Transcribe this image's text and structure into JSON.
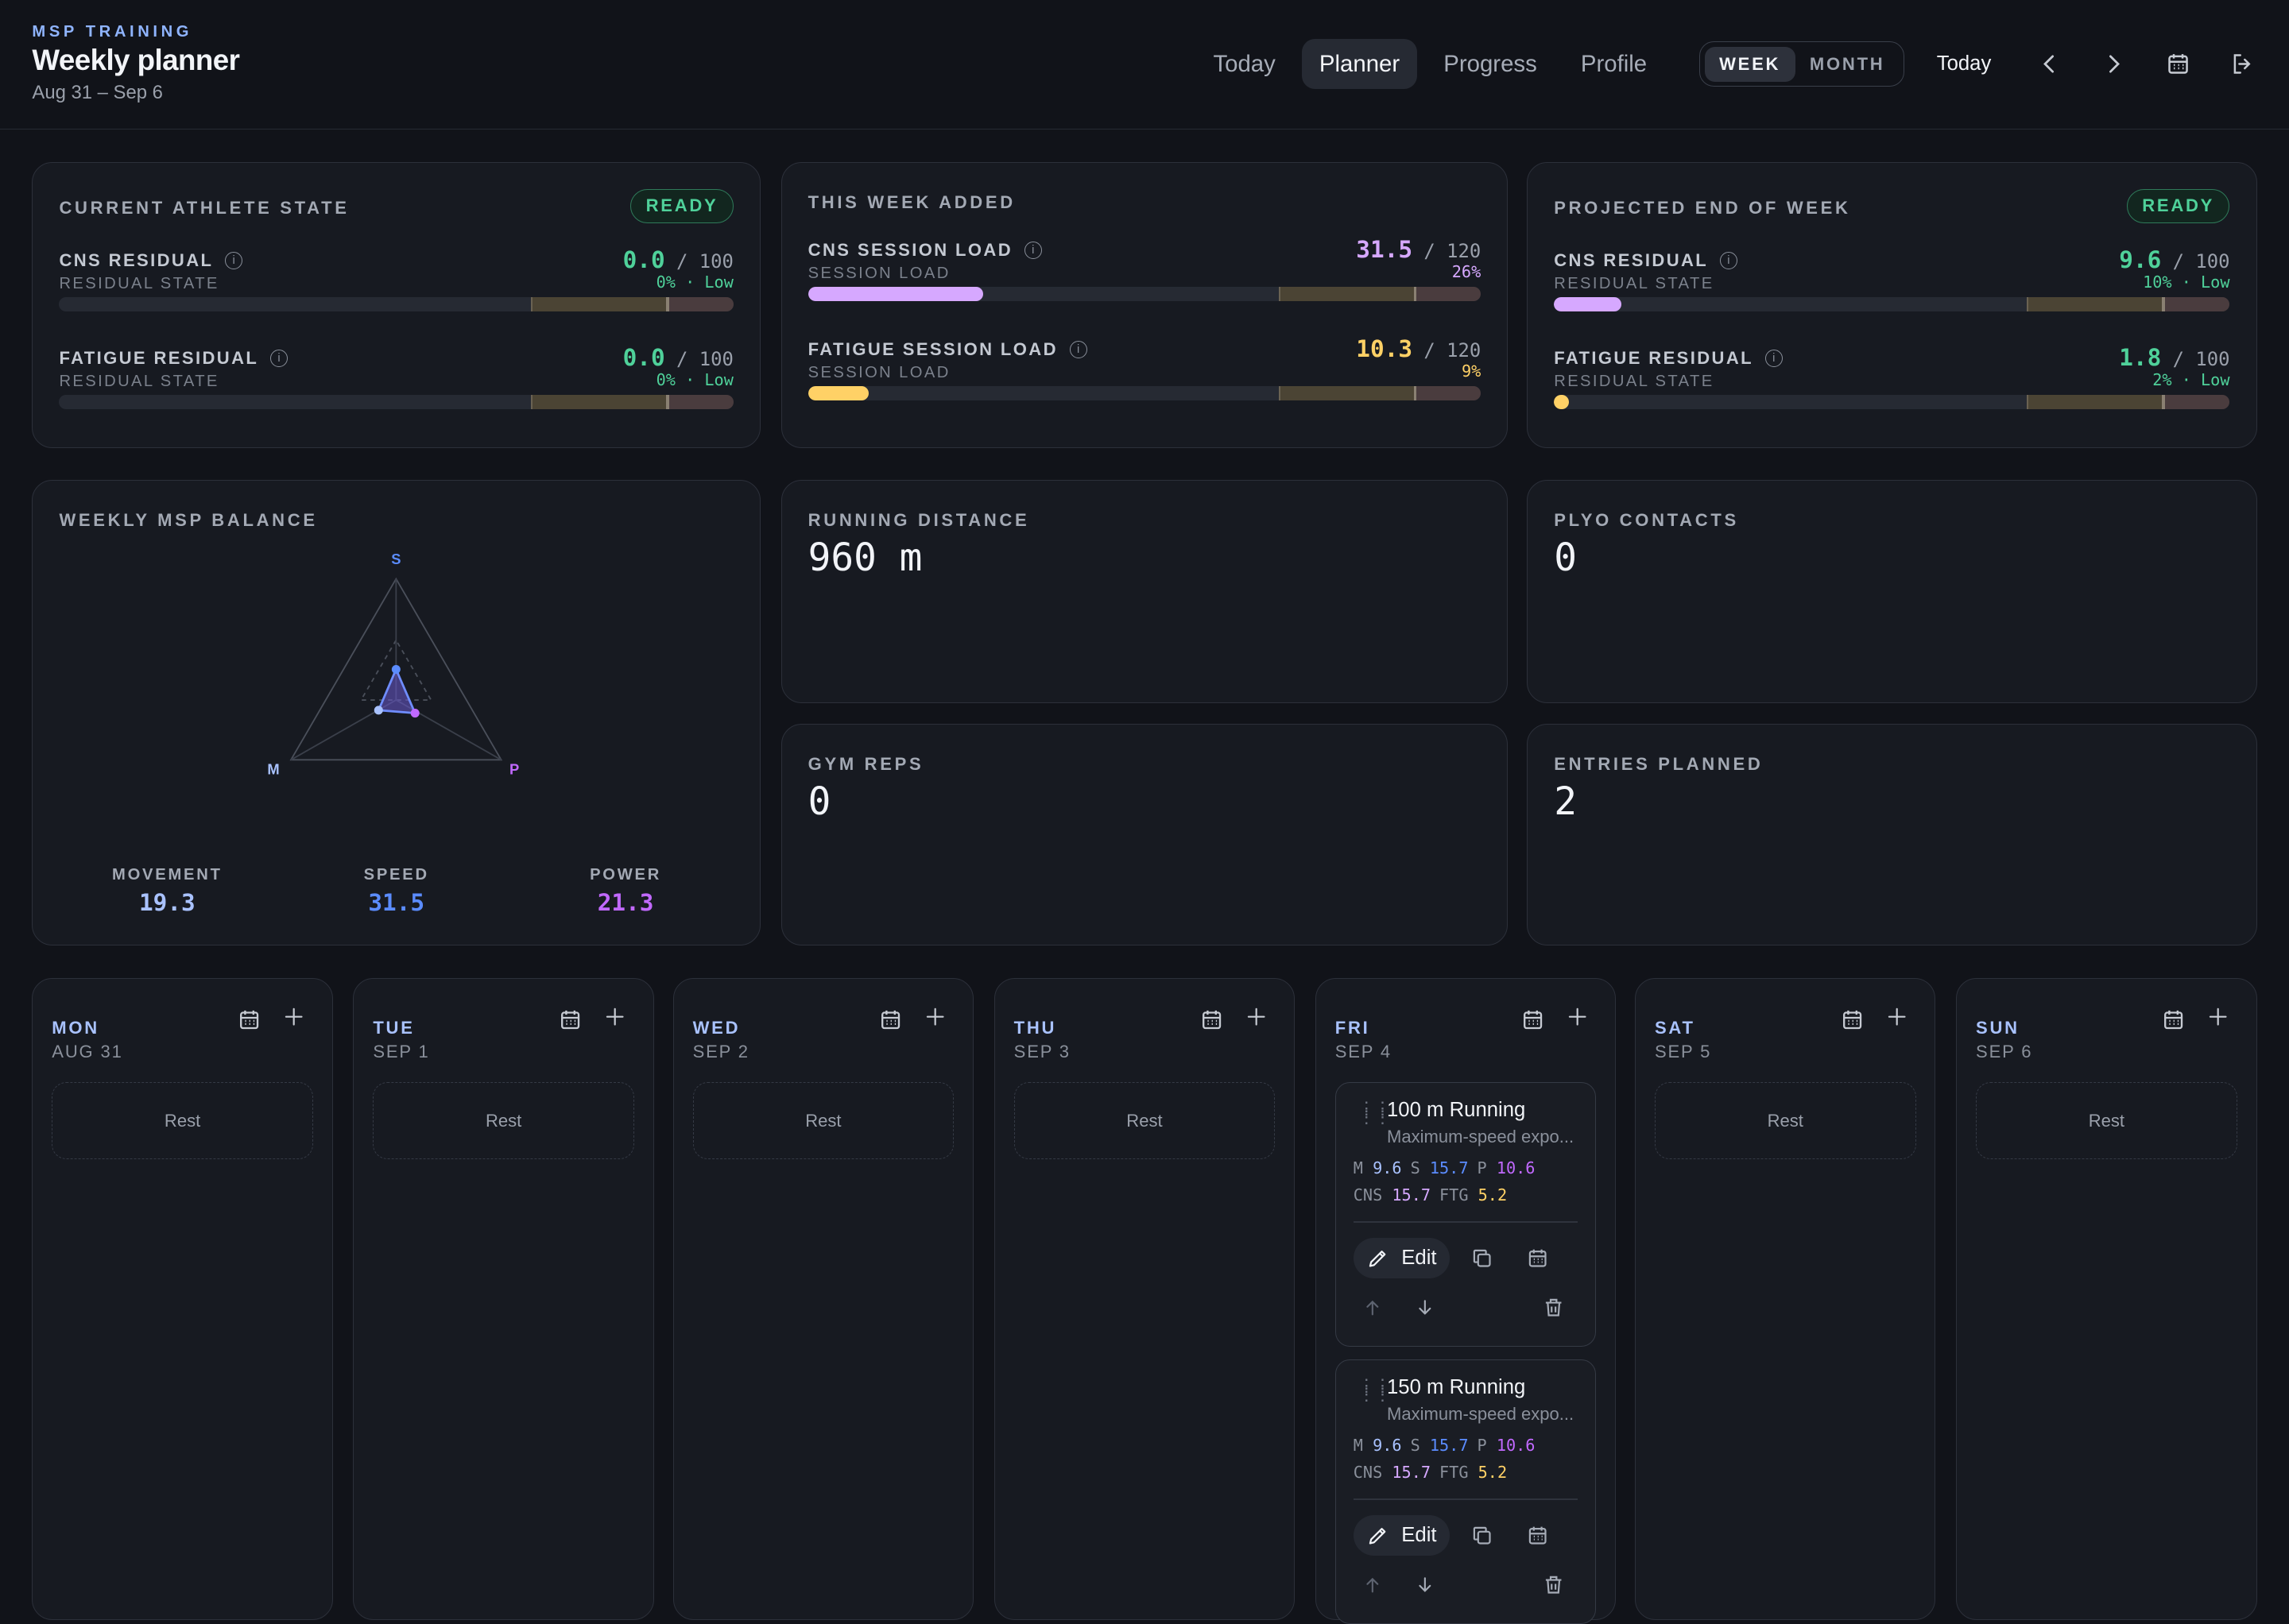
{
  "header": {
    "kicker": "MSP TRAINING",
    "title": "Weekly planner",
    "range": "Aug 31 – Sep 6",
    "nav": [
      "Today",
      "Planner",
      "Progress",
      "Profile"
    ],
    "active_nav": "Planner",
    "view_toggle": [
      "WEEK",
      "MONTH"
    ],
    "active_view": "WEEK",
    "today_button": "Today",
    "icons": [
      "chevron-left-icon",
      "chevron-right-icon",
      "calendar-icon",
      "logout-icon"
    ]
  },
  "colors": {
    "cns": "#d6a8ff",
    "fatigue": "#ffd166",
    "ready": "#4fd19a",
    "movement": "#a9c2ff",
    "speed": "#5b8cff",
    "power": "#c169ff"
  },
  "current_state": {
    "title": "CURRENT ATHLETE STATE",
    "badge": "READY",
    "metrics": [
      {
        "label": "CNS RESIDUAL",
        "sub": "RESIDUAL STATE",
        "value": "0.0",
        "max": "/ 100",
        "pct": "0% · Low",
        "fill": 0
      },
      {
        "label": "FATIGUE RESIDUAL",
        "sub": "RESIDUAL STATE",
        "value": "0.0",
        "max": "/ 100",
        "pct": "0% · Low",
        "fill": 0
      }
    ]
  },
  "week_added": {
    "title": "THIS WEEK ADDED",
    "metrics": [
      {
        "label": "CNS SESSION LOAD",
        "sub": "SESSION LOAD",
        "value": "31.5",
        "max": "/ 120",
        "pct": "26%",
        "fill": 0.26
      },
      {
        "label": "FATIGUE SESSION LOAD",
        "sub": "SESSION LOAD",
        "value": "10.3",
        "max": "/ 120",
        "pct": "9%",
        "fill": 0.09
      }
    ]
  },
  "projected": {
    "title": "PROJECTED END OF WEEK",
    "badge": "READY",
    "metrics": [
      {
        "label": "CNS RESIDUAL",
        "sub": "RESIDUAL STATE",
        "value": "9.6",
        "max": "/ 100",
        "pct": "10% · Low",
        "fill": 0.1
      },
      {
        "label": "FATIGUE RESIDUAL",
        "sub": "RESIDUAL STATE",
        "value": "1.8",
        "max": "/ 100",
        "pct": "2% · Low",
        "fill": 0.02
      }
    ]
  },
  "balance": {
    "title": "WEEKLY MSP BALANCE",
    "axes": [
      "S",
      "M",
      "P"
    ],
    "movement_label": "MOVEMENT",
    "movement": "19.3",
    "speed_label": "SPEED",
    "speed": "31.5",
    "power_label": "POWER",
    "power": "21.3"
  },
  "stats": {
    "running_label": "RUNNING DISTANCE",
    "running": "960 m",
    "plyo_label": "PLYO CONTACTS",
    "plyo": "0",
    "gym_label": "GYM REPS",
    "gym": "0",
    "entries_label": "ENTRIES PLANNED",
    "entries": "2"
  },
  "days": [
    {
      "name": "MON",
      "date": "AUG 31",
      "rest": "Rest"
    },
    {
      "name": "TUE",
      "date": "SEP 1",
      "rest": "Rest"
    },
    {
      "name": "WED",
      "date": "SEP 2",
      "rest": "Rest"
    },
    {
      "name": "THU",
      "date": "SEP 3",
      "rest": "Rest"
    },
    {
      "name": "FRI",
      "date": "SEP 4",
      "rest": ""
    },
    {
      "name": "SAT",
      "date": "SEP 5",
      "rest": "Rest"
    },
    {
      "name": "SUN",
      "date": "SEP 6",
      "rest": "Rest"
    }
  ],
  "entries": [
    {
      "title": "100 m Running",
      "subtitle": "Maximum-speed expo...",
      "m": "9.6",
      "s": "15.7",
      "p": "10.6",
      "cns": "15.7",
      "ftg": "5.2",
      "edit": "Edit"
    },
    {
      "title": "150 m Running",
      "subtitle": "Maximum-speed expo...",
      "m": "9.6",
      "s": "15.7",
      "p": "10.6",
      "cns": "15.7",
      "ftg": "5.2",
      "edit": "Edit"
    }
  ],
  "entry_labels": {
    "m": "M",
    "s": "S",
    "p": "P",
    "cns": "CNS",
    "ftg": "FTG"
  }
}
